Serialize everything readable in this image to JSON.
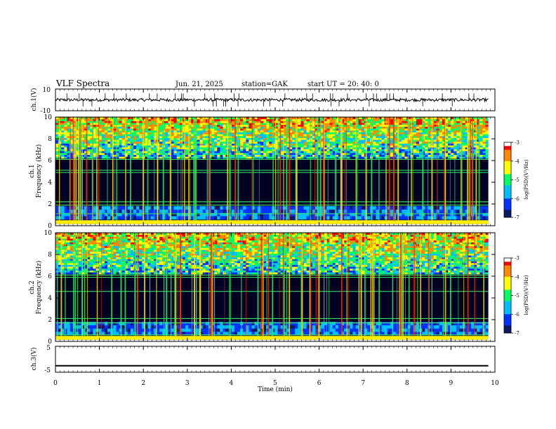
{
  "header": {
    "title": "VLF  Spectra",
    "date": "Jun. 21, 2025",
    "station": "station=GAK",
    "start": "start  UT =   20: 40: 0"
  },
  "colors": {
    "colormap": [
      "#000000",
      "#0b1a66",
      "#0033ff",
      "#00bfff",
      "#00ff66",
      "#ffff00",
      "#ff8800",
      "#ff0000",
      "#ffffff"
    ]
  },
  "chart_data": [
    {
      "type": "line",
      "name": "ch1-waveform",
      "ylabel": "ch.1(V)",
      "ylim": [
        -10,
        10
      ],
      "yticks": [
        "10",
        "-10"
      ],
      "xlim": [
        0,
        10
      ],
      "baseline": 0,
      "amplitude_approx": 2,
      "data_end_min": 9.85
    },
    {
      "type": "heatmap",
      "name": "ch1-spectrogram",
      "ylabel": "ch.1\nFrequency (kHz)",
      "ylim": [
        0,
        10
      ],
      "yticks": [
        "0",
        "2",
        "4",
        "6",
        "8",
        "10"
      ],
      "xlim": [
        0,
        10
      ],
      "colorbar": {
        "label": "log(PSD)(V²/Hz)",
        "range": [
          -7,
          -3
        ],
        "ticks": [
          "-3",
          "-4",
          "-5",
          "-6",
          "-7"
        ]
      }
    },
    {
      "type": "heatmap",
      "name": "ch2-spectrogram",
      "ylabel": "ch.2\nFrequency (kHz)",
      "ylim": [
        0,
        10
      ],
      "yticks": [
        "0",
        "2",
        "4",
        "6",
        "8",
        "10"
      ],
      "xlim": [
        0,
        10
      ],
      "colorbar": {
        "label": "log(PSD)(V²/Hz)",
        "range": [
          -7,
          -3
        ],
        "ticks": [
          "-3",
          "-4",
          "-5",
          "-6",
          "-7"
        ]
      }
    },
    {
      "type": "line",
      "name": "ch3-waveform",
      "ylabel": "ch.3(V)",
      "ylim": [
        -5,
        5
      ],
      "yticks": [
        "5",
        "-5"
      ],
      "xlim": [
        0,
        10
      ],
      "baseline": -2.5
    }
  ],
  "xaxis": {
    "label": "Time  (min)",
    "ticks": [
      "0",
      "1",
      "2",
      "3",
      "4",
      "5",
      "6",
      "7",
      "8",
      "9",
      "10"
    ]
  }
}
